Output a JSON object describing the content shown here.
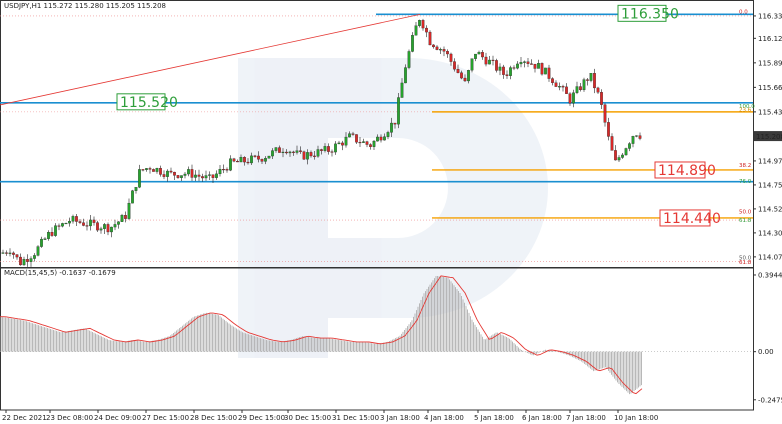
{
  "chart_data": [
    {
      "type": "candlestick",
      "header": "USDJPY,H1  115.272 115.280 115.205 115.208",
      "ylim": [
        113.98,
        116.4
      ],
      "y_ticks": [
        "116.335",
        "116.125",
        "115.895",
        "115.665",
        "115.435",
        "114.975",
        "114.750",
        "114.525",
        "114.300",
        "114.075"
      ],
      "current_price": "115.208",
      "x_ticks": [
        "22 Dec 2021",
        "23 Dec 08:00",
        "24 Dec 09:00",
        "27 Dec 15:00",
        "28 Dec 15:00",
        "29 Dec 15:00",
        "30 Dec 15:00",
        "31 Dec 15:00",
        "3 Jan 18:00",
        "4 Jan 18:00",
        "5 Jan 18:00",
        "6 Jan 18:00",
        "7 Jan 18:00",
        "10 Jan 18:00"
      ],
      "close_path": [
        [
          0,
          114.1
        ],
        [
          10,
          114.15
        ],
        [
          20,
          114.02
        ],
        [
          35,
          114.12
        ],
        [
          50,
          114.3
        ],
        [
          70,
          114.42
        ],
        [
          90,
          114.38
        ],
        [
          110,
          114.35
        ],
        [
          125,
          114.45
        ],
        [
          140,
          114.88
        ],
        [
          150,
          114.92
        ],
        [
          170,
          114.85
        ],
        [
          190,
          114.86
        ],
        [
          210,
          114.8
        ],
        [
          230,
          114.95
        ],
        [
          260,
          115.0
        ],
        [
          285,
          115.1
        ],
        [
          300,
          115.02
        ],
        [
          330,
          115.08
        ],
        [
          350,
          115.2
        ],
        [
          370,
          115.12
        ],
        [
          385,
          115.25
        ],
        [
          395,
          115.35
        ],
        [
          405,
          115.85
        ],
        [
          415,
          116.2
        ],
        [
          420,
          116.33
        ],
        [
          430,
          116.1
        ],
        [
          445,
          116.0
        ],
        [
          465,
          115.7
        ],
        [
          475,
          116.0
        ],
        [
          490,
          115.9
        ],
        [
          505,
          115.78
        ],
        [
          520,
          115.95
        ],
        [
          540,
          115.85
        ],
        [
          555,
          115.72
        ],
        [
          570,
          115.55
        ],
        [
          590,
          115.78
        ],
        [
          600,
          115.55
        ],
        [
          608,
          115.2
        ],
        [
          615,
          114.95
        ],
        [
          625,
          115.1
        ],
        [
          635,
          115.25
        ],
        [
          642,
          115.21
        ]
      ],
      "annotations": [
        "116.350",
        "115.520",
        "114.890",
        "114.440"
      ],
      "levels": [
        {
          "price": 116.35,
          "color": "#1a8fd0",
          "label": "116.350"
        },
        {
          "price": 115.52,
          "color": "#1a8fd0",
          "label": "115.520"
        },
        {
          "price": 114.78,
          "color": "#1a8fd0"
        },
        {
          "price": 115.435,
          "color": "#f5a000"
        },
        {
          "price": 114.89,
          "color": "#f5a000",
          "label": "114.890"
        },
        {
          "price": 114.44,
          "color": "#f5a000",
          "label": "114.440"
        }
      ],
      "fib_levels": [
        "0.0",
        "100.0",
        "23.6",
        "38.2",
        "76.0",
        "50.0",
        "61.8",
        "50.0",
        "61.8"
      ],
      "trendline": {
        "from": [
          0,
          115.5
        ],
        "to": [
          420,
          116.35
        ],
        "color": "#e53935"
      }
    },
    {
      "type": "histogram",
      "header": "MACD(15,45,5) -0.1637 -0.1679",
      "ylim": [
        -0.3,
        0.42
      ],
      "y_ticks": [
        "0.3944",
        "0.00",
        "-0.2475"
      ],
      "values": [
        0.18,
        0.17,
        0.16,
        0.14,
        0.12,
        0.1,
        0.11,
        0.12,
        0.09,
        0.06,
        0.05,
        0.06,
        0.05,
        0.06,
        0.08,
        0.13,
        0.18,
        0.2,
        0.19,
        0.14,
        0.1,
        0.08,
        0.06,
        0.05,
        0.06,
        0.08,
        0.07,
        0.07,
        0.06,
        0.05,
        0.05,
        0.04,
        0.05,
        0.08,
        0.16,
        0.3,
        0.39,
        0.38,
        0.3,
        0.16,
        0.06,
        0.1,
        0.07,
        0.01,
        -0.02,
        0.01,
        0.0,
        -0.02,
        -0.05,
        -0.1,
        -0.08,
        -0.16,
        -0.22,
        -0.17
      ]
    }
  ],
  "colors": {
    "bull": "#27a22d",
    "bear": "#d62828",
    "level_blue": "#1a8fd0",
    "level_orange": "#f5a000",
    "macd_signal": "#e53935",
    "macd_bar": "#b0b0b0"
  }
}
